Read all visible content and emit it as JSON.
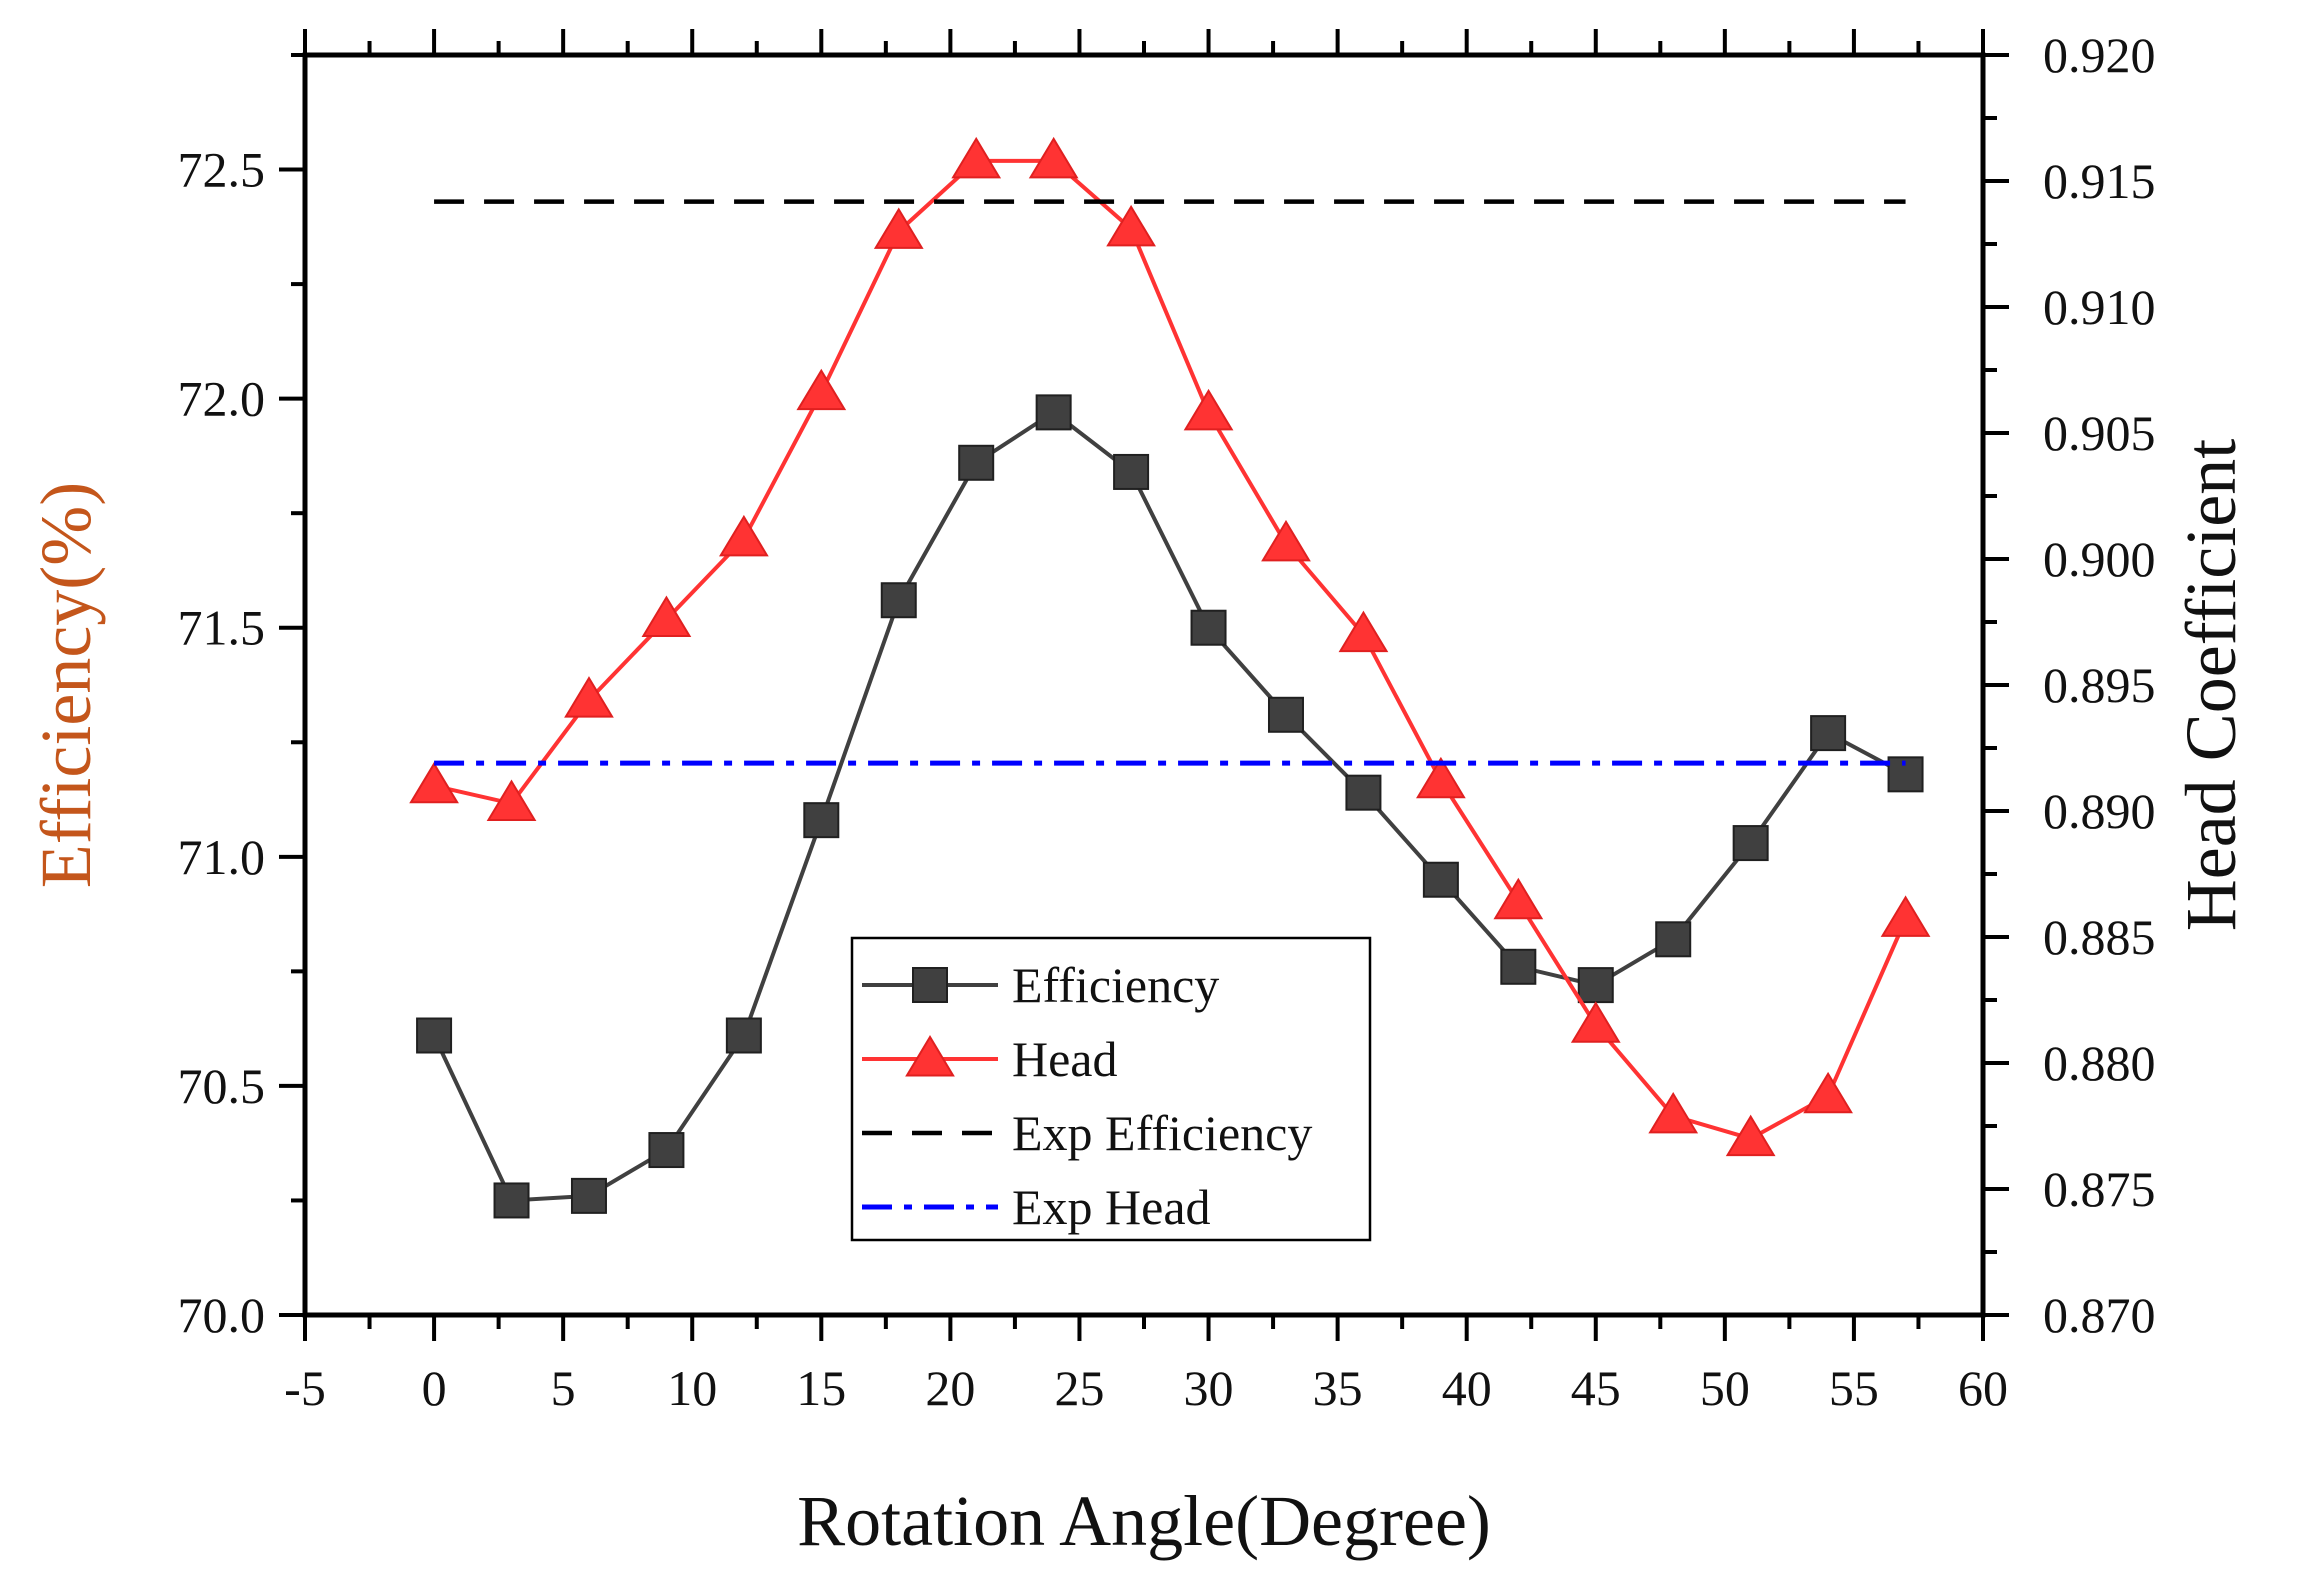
{
  "chart_data": {
    "type": "line",
    "xlabel": "Rotation Angle(Degree)",
    "ylabel": "Efficiency(%)",
    "y2label": "Head Coefficient",
    "xlim": [
      -5,
      60
    ],
    "ylim": [
      70.0,
      72.75
    ],
    "y2lim": [
      0.87,
      0.92
    ],
    "x_ticks": [
      -5,
      0,
      5,
      10,
      15,
      20,
      25,
      30,
      35,
      40,
      45,
      50,
      55,
      60
    ],
    "x_tick_labels": [
      "-5",
      "0",
      "5",
      "10",
      "15",
      "20",
      "25",
      "30",
      "35",
      "40",
      "45",
      "50",
      "55",
      "60"
    ],
    "y_ticks": [
      70.0,
      70.5,
      71.0,
      71.5,
      72.0,
      72.5
    ],
    "y_tick_labels": [
      "70.0",
      "70.5",
      "71.0",
      "71.5",
      "72.0",
      "72.5"
    ],
    "y2_ticks": [
      0.87,
      0.875,
      0.88,
      0.885,
      0.89,
      0.895,
      0.9,
      0.905,
      0.91,
      0.915,
      0.92
    ],
    "y2_tick_labels": [
      "0.870",
      "0.875",
      "0.880",
      "0.885",
      "0.890",
      "0.895",
      "0.900",
      "0.905",
      "0.910",
      "0.915",
      "0.920"
    ],
    "legend_position": "center-bottom",
    "grid": false,
    "series": [
      {
        "name": "Efficiency",
        "axis": "left",
        "style": "line-square",
        "color": "#404040",
        "x": [
          0,
          3,
          6,
          9,
          12,
          15,
          18,
          21,
          24,
          27,
          30,
          33,
          36,
          39,
          42,
          45,
          48,
          51,
          54,
          57
        ],
        "values": [
          70.61,
          70.25,
          70.26,
          70.36,
          70.61,
          71.08,
          71.56,
          71.86,
          71.97,
          71.84,
          71.5,
          71.31,
          71.14,
          70.95,
          70.76,
          70.72,
          70.82,
          71.03,
          71.27,
          71.18
        ]
      },
      {
        "name": "Head",
        "axis": "right",
        "style": "line-triangle",
        "color": "#ff3333",
        "x": [
          0,
          3,
          6,
          9,
          12,
          15,
          18,
          21,
          24,
          27,
          30,
          33,
          36,
          39,
          42,
          45,
          48,
          51,
          54,
          57
        ],
        "values": [
          0.891,
          0.8903,
          0.8944,
          0.8976,
          0.9008,
          0.9066,
          0.913,
          0.9158,
          0.9158,
          0.9131,
          0.9058,
          0.9006,
          0.897,
          0.8912,
          0.8864,
          0.8815,
          0.8779,
          0.877,
          0.8787,
          0.8857
        ]
      },
      {
        "name": "Exp Efficiency",
        "axis": "left",
        "style": "dash",
        "color": "#000000",
        "x": [
          0,
          57
        ],
        "values": [
          72.43,
          72.43
        ]
      },
      {
        "name": "Exp Head",
        "axis": "right",
        "style": "dashdot",
        "color": "#0000ff",
        "x": [
          0,
          57
        ],
        "values": [
          0.8919,
          0.8919
        ]
      }
    ]
  }
}
